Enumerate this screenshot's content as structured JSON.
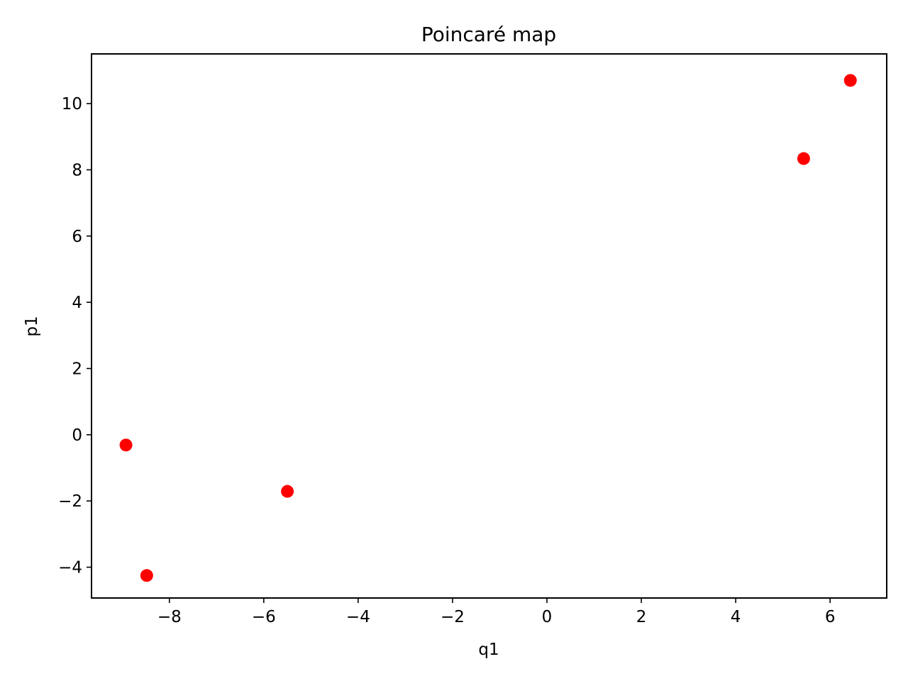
{
  "chart_data": {
    "type": "scatter",
    "title": "Poincaré map",
    "xlabel": "q1",
    "ylabel": "p1",
    "xlim": [
      -9.65,
      7.2
    ],
    "ylim": [
      -4.93,
      11.5
    ],
    "xticks": [
      -8,
      -6,
      -4,
      -2,
      0,
      2,
      4,
      6
    ],
    "yticks": [
      -4,
      -2,
      0,
      2,
      4,
      6,
      8,
      10
    ],
    "xtick_labels": [
      "−8",
      "−6",
      "−4",
      "−2",
      "0",
      "2",
      "4",
      "6"
    ],
    "ytick_labels": [
      "−4",
      "−2",
      "0",
      "2",
      "4",
      "6",
      "8",
      "10"
    ],
    "grid": false,
    "marker_color": "#ff0000",
    "points": [
      {
        "x": -8.92,
        "y": -0.31
      },
      {
        "x": -8.48,
        "y": -4.25
      },
      {
        "x": -5.5,
        "y": -1.71
      },
      {
        "x": 5.44,
        "y": 8.34
      },
      {
        "x": 6.43,
        "y": 10.7
      }
    ]
  }
}
